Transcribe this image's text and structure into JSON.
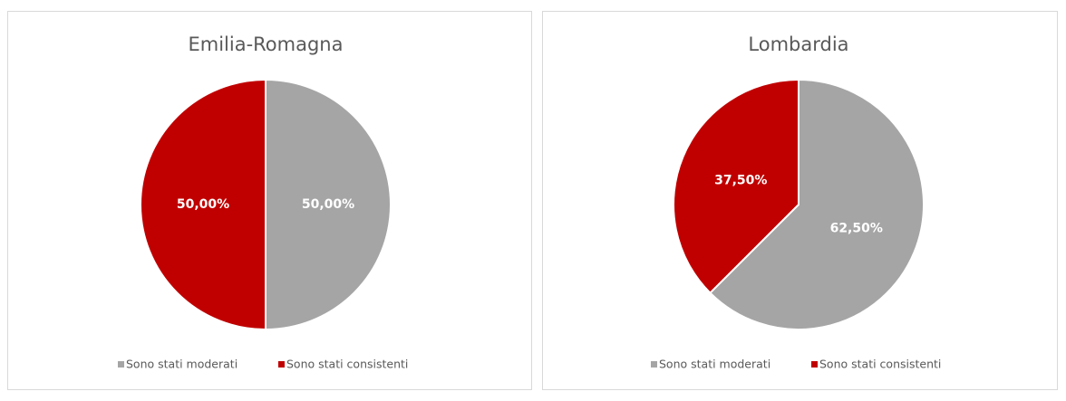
{
  "chart_data": [
    {
      "type": "pie",
      "title": "Emilia-Romagna",
      "categories": [
        "Sono stati moderati",
        "Sono stati consistenti"
      ],
      "values": [
        50,
        50
      ],
      "value_labels": [
        "50,00%",
        "50,00%"
      ],
      "colors": [
        "#a5a5a5",
        "#c00000"
      ],
      "legend": "bottom"
    },
    {
      "type": "pie",
      "title": "Lombardia",
      "categories": [
        "Sono stati moderati",
        "Sono stati consistenti"
      ],
      "values": [
        62.5,
        37.5
      ],
      "value_labels": [
        "62,50%",
        "37,50%"
      ],
      "colors": [
        "#a5a5a5",
        "#c00000"
      ],
      "legend": "bottom"
    }
  ]
}
